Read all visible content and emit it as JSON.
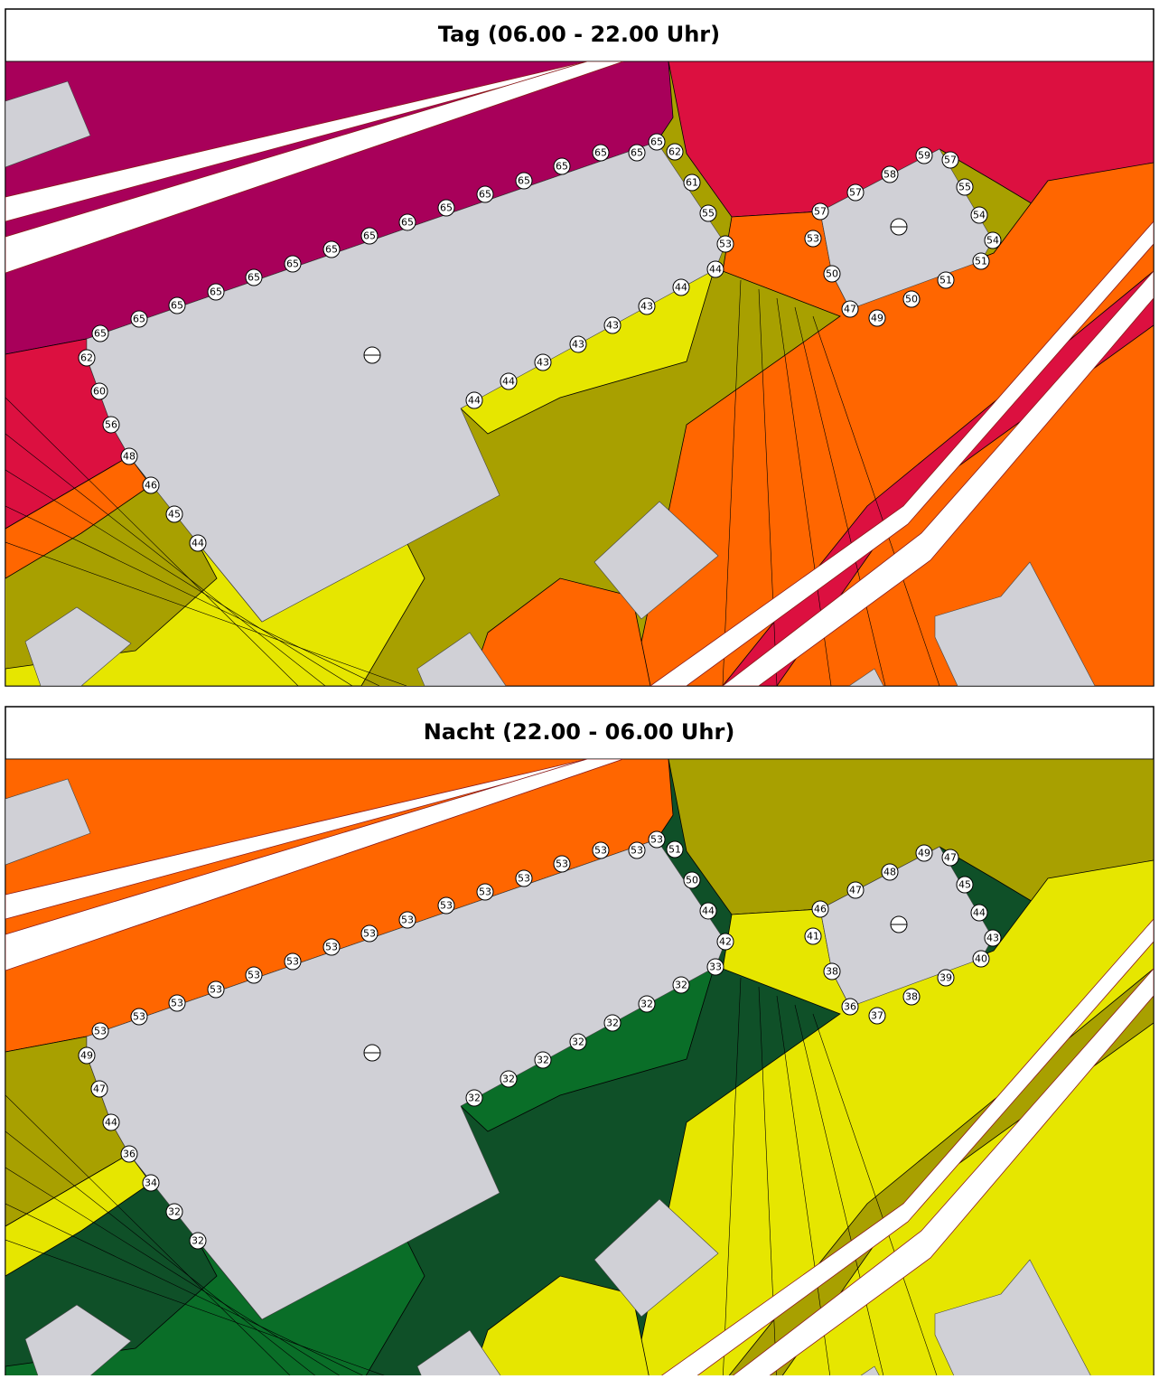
{
  "panels": [
    {
      "title": "Tag (06.00 - 22.00 Uhr)",
      "labels": [
        65,
        62,
        65,
        65,
        65,
        65,
        65,
        65,
        65,
        65,
        65,
        65,
        65,
        65,
        65,
        65,
        65,
        62,
        60,
        56,
        48,
        46,
        45,
        44,
        61,
        55,
        53,
        44,
        44,
        43,
        43,
        43,
        43,
        44,
        44,
        57,
        58,
        59,
        57,
        55,
        54,
        54,
        51,
        51,
        50,
        49,
        47,
        50,
        53,
        57
      ]
    },
    {
      "title": "Nacht (22.00 - 06.00 Uhr)",
      "labels": [
        53,
        51,
        53,
        53,
        53,
        53,
        53,
        53,
        53,
        53,
        53,
        53,
        53,
        53,
        53,
        53,
        53,
        49,
        47,
        44,
        36,
        34,
        32,
        32,
        50,
        44,
        42,
        33,
        32,
        32,
        32,
        32,
        32,
        32,
        32,
        47,
        48,
        49,
        47,
        45,
        44,
        43,
        40,
        39,
        38,
        37,
        36,
        38,
        41,
        46
      ]
    }
  ]
}
